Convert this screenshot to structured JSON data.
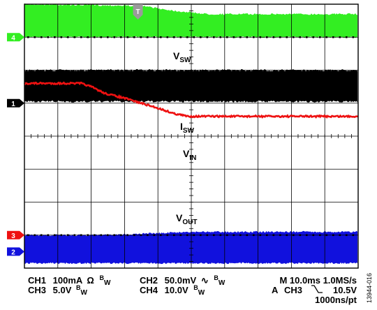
{
  "chart_data": {
    "type": "line",
    "title": "",
    "xlabel": "",
    "ylabel": "",
    "grid": true,
    "x_divisions": 10,
    "y_divisions": 8,
    "channels": [
      {
        "id": "4",
        "name": "V_SW",
        "label_main": "V",
        "label_sub": "SW",
        "color": "#33ee22",
        "style": "switching band"
      },
      {
        "id": "1",
        "name": "I_SW",
        "label_main": "I",
        "label_sub": "SW",
        "color": "#000000",
        "style": "switching band"
      },
      {
        "id": "3",
        "name": "V_IN",
        "label_main": "V",
        "label_sub": "IN",
        "color": "#ee1111",
        "style": "trace"
      },
      {
        "id": "2",
        "name": "V_OUT",
        "label_main": "V",
        "label_sub": "OUT",
        "color": "#1111dd",
        "style": "switching band"
      }
    ],
    "series": [
      {
        "name": "V_IN",
        "x_div": [
          0,
          1.7,
          2.0,
          2.4,
          3.0,
          3.5,
          4.0,
          4.5,
          4.9,
          10
        ],
        "y_div": [
          5.6,
          5.6,
          5.5,
          5.3,
          5.15,
          5.0,
          4.85,
          4.68,
          4.6,
          4.6
        ]
      }
    ],
    "vsw_band": {
      "x_div": [
        0,
        3.5,
        4.5,
        5.5,
        10
      ],
      "y_top_div": [
        8.0,
        7.95,
        7.8,
        7.7,
        7.7
      ],
      "y_bottom_div": [
        7.0,
        7.0,
        7.0,
        7.0,
        7.0
      ]
    },
    "isw_band": {
      "y_top_div": 6.0,
      "y_bottom_div": 5.05
    },
    "vout_band": {
      "x_div": [
        0,
        2.5,
        5.0,
        10
      ],
      "y_top_div": [
        1.0,
        1.0,
        1.1,
        1.1
      ],
      "y_bottom_div": [
        0.15,
        0.15,
        0.15,
        0.15
      ]
    },
    "trigger_position_div": 3.4,
    "ground_markers": [
      {
        "label": "4",
        "y_div": 7.0,
        "color": "#33ee22"
      },
      {
        "label": "1",
        "y_div": 5.0,
        "color": "#000000"
      },
      {
        "label": "3",
        "y_div": 1.0,
        "color": "#ee1111"
      },
      {
        "label": "2",
        "y_div": 0.5,
        "color": "#1111dd"
      }
    ],
    "trigger_marker": "T"
  },
  "readout": {
    "ch1": {
      "name": "CH1",
      "scale": "100mA",
      "symbol": "Ω",
      "bw": "B",
      "bw_sub": "W"
    },
    "ch3": {
      "name": "CH3",
      "scale": "5.0V",
      "bw": "B",
      "bw_sub": "W"
    },
    "ch2": {
      "name": "CH2",
      "scale": "50.0mV",
      "symbol": "∿",
      "bw": "B",
      "bw_sub": "W"
    },
    "ch4": {
      "name": "CH4",
      "scale": "10.0V",
      "bw": "B",
      "bw_sub": "W"
    },
    "timebase": "M 10.0ms 1.0MS/s",
    "trigger": {
      "prefix": "A",
      "channel": "CH3",
      "slope_icon": "falling-edge-icon",
      "level": "10.5V"
    },
    "resolution": "1000ns/pt"
  },
  "figure_id": "13944-016"
}
